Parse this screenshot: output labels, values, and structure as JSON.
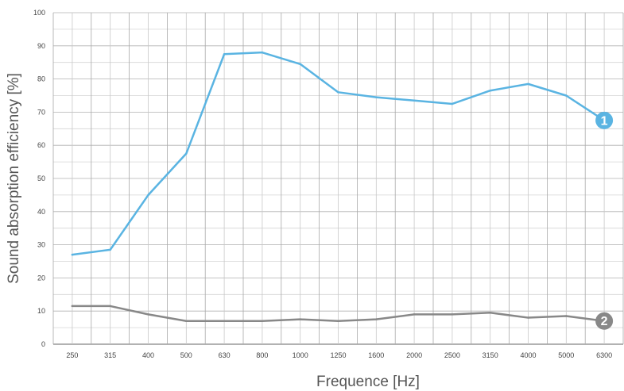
{
  "chart_data": {
    "type": "line",
    "xlabel": "Frequence [Hz]",
    "ylabel": "Sound absorption efficiency [%]",
    "categories": [
      "250",
      "315",
      "400",
      "500",
      "630",
      "800",
      "1000",
      "1250",
      "1600",
      "2000",
      "2500",
      "3150",
      "4000",
      "5000",
      "6300"
    ],
    "ylim": [
      0,
      100
    ],
    "yticks": [
      "0",
      "10",
      "20",
      "30",
      "40",
      "50",
      "60",
      "70",
      "80",
      "90",
      "100"
    ],
    "grid": true,
    "series": [
      {
        "name": "1",
        "color": "#5ab4e2",
        "values": [
          27,
          28.5,
          45,
          57.5,
          87.5,
          88,
          84.5,
          76,
          74.5,
          73.5,
          72.5,
          76.5,
          78.5,
          75,
          67.5
        ]
      },
      {
        "name": "2",
        "color": "#888888",
        "values": [
          11.5,
          11.5,
          9,
          7,
          7,
          7,
          7.5,
          7,
          7.5,
          9,
          9,
          9.5,
          8,
          8.5,
          7
        ]
      }
    ]
  }
}
